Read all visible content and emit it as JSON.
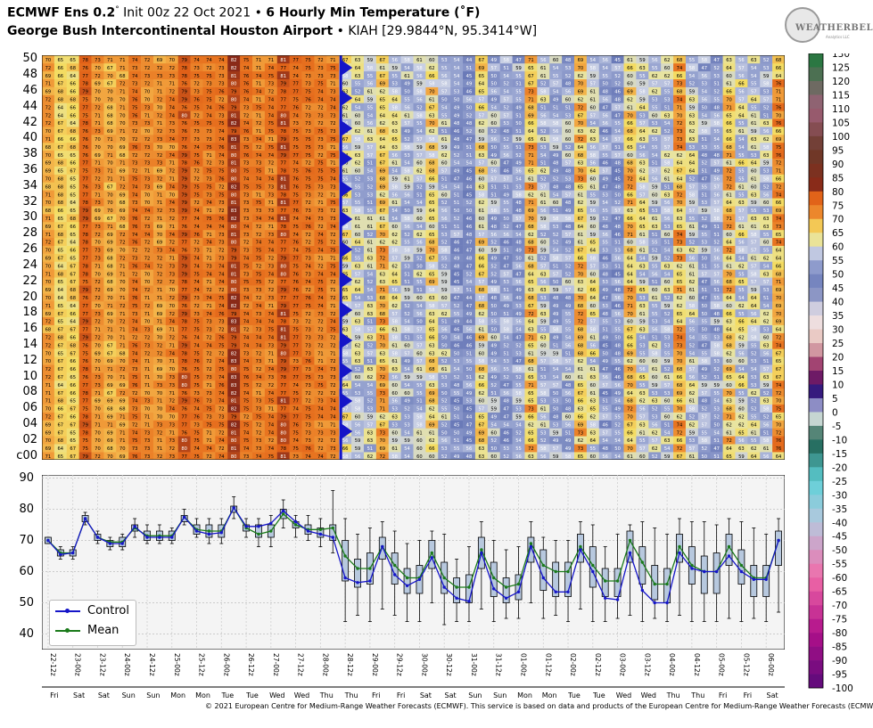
{
  "header": {
    "line1_bold": "ECMWF Ens 0.2",
    "line1_deg": "°",
    "line1_init": " Init 00z 22 Oct 2021 • ",
    "line1_product": "6 Hourly Min Temperature (˚F)",
    "line2_bold": "George Bush Intercontinental Houston Airport",
    "line2_rest": " • KIAH [29.9844°N, 95.3414°W]"
  },
  "logo": {
    "text": "WEATHERBELL",
    "sub": "Analytics LLC"
  },
  "footer": "© 2021 European Centre for Medium-Range Weather Forecasts (ECMWF). This service is based on data and products of the European Centre for Medium-Range Weather Forecasts (ECMWF).",
  "legend": {
    "control": "Control",
    "mean": "Mean"
  },
  "colors": {
    "control": "#1515c8",
    "mean": "#1a7a1a",
    "box_fill": "#b7c8de"
  },
  "chart_data": [
    {
      "type": "heatmap",
      "description_rows": "Ensemble members",
      "y_tick_labels": [
        "c00",
        "02",
        "04",
        "06",
        "08",
        "10",
        "12",
        "14",
        "16",
        "18",
        "20",
        "22",
        "24",
        "26",
        "28",
        "30",
        "32",
        "34",
        "36",
        "38",
        "40",
        "42",
        "44",
        "46",
        "48",
        "50"
      ],
      "member_count": 51,
      "time_step_count": 60,
      "value_range": [
        -100,
        130
      ],
      "cell_values_note": "cell values are per-member 6-hourly minimum temperatures; rows correspond to members c00..50",
      "column_means": [
        70,
        66,
        66,
        77,
        71,
        69,
        70,
        74,
        72,
        71,
        72,
        78,
        74,
        73,
        74,
        81,
        74,
        73,
        73,
        79,
        75,
        74,
        73,
        73,
        61,
        58,
        57,
        67,
        59,
        55,
        56,
        64,
        56,
        51,
        50,
        63,
        54,
        52,
        53,
        67,
        57,
        54,
        54,
        67,
        60,
        51,
        51,
        66,
        59,
        57,
        57,
        68,
        58,
        53,
        53,
        66,
        60,
        58,
        57,
        70
      ]
    },
    {
      "type": "box",
      "x_labels": [
        "22-12z",
        "23-00z",
        "23-12z",
        "24-00z",
        "24-12z",
        "25-00z",
        "25-12z",
        "26-00z",
        "26-12z",
        "27-00z",
        "27-12z",
        "28-00z",
        "28-12z",
        "29-00z",
        "29-12z",
        "30-00z",
        "30-12z",
        "31-00z",
        "31-12z",
        "01-00z",
        "01-12z",
        "02-00z",
        "02-12z",
        "03-00z",
        "03-12z",
        "04-00z",
        "04-12z",
        "05-00z",
        "05-12z",
        "06-00z"
      ],
      "day_labels": [
        "Fri",
        "Sat",
        "Sat",
        "Sun",
        "Sun",
        "Mon",
        "Mon",
        "Tue",
        "Tue",
        "Wed",
        "Wed",
        "Thu",
        "Thu",
        "Fri",
        "Fri",
        "Sat",
        "Sat",
        "Sun",
        "Sun",
        "Mon",
        "Mon",
        "Tue",
        "Tue",
        "Wed",
        "Wed",
        "Thu",
        "Thu",
        "Fri",
        "Fri",
        "Sat"
      ],
      "ylim": [
        35,
        91
      ],
      "yticks": [
        40,
        50,
        60,
        70,
        80,
        90
      ],
      "control": [
        70,
        65.5,
        66,
        77,
        71,
        69,
        69,
        74.5,
        71,
        71,
        71,
        77.5,
        73,
        72,
        72.5,
        80.5,
        74.5,
        74.5,
        75.5,
        79.5,
        76,
        73,
        72,
        71,
        58,
        56.5,
        57,
        68,
        59,
        55.5,
        57.5,
        64.5,
        55,
        51.5,
        50.5,
        66,
        54.5,
        51.5,
        53.5,
        68,
        58,
        53.5,
        53.5,
        67,
        60,
        51.5,
        51,
        66,
        54,
        50,
        50,
        66,
        61,
        60,
        60,
        65,
        60,
        57.5,
        57.5,
        70
      ],
      "mean": [
        70,
        66,
        66,
        77,
        71,
        69.5,
        69.5,
        74,
        71.5,
        71.5,
        71.5,
        77.5,
        73.5,
        73,
        73,
        80.5,
        74,
        72,
        73,
        78.5,
        75,
        73.5,
        73.5,
        74,
        65,
        61,
        61,
        68,
        62,
        58,
        58,
        66,
        58,
        55,
        55,
        67,
        58,
        55,
        56,
        69,
        62,
        60,
        60,
        68,
        62,
        57,
        57,
        70,
        63,
        56,
        56,
        68,
        62,
        60,
        60,
        68,
        62,
        58,
        58,
        70
      ],
      "box_q1": [
        69,
        65,
        65,
        76,
        70,
        68,
        68,
        73,
        70,
        70,
        70,
        76,
        72,
        71,
        71,
        79,
        73,
        71,
        71,
        77,
        74,
        72,
        71,
        70,
        57,
        55,
        56,
        64,
        56,
        53,
        53,
        61,
        53,
        50,
        50,
        61,
        52,
        50,
        51,
        63,
        54,
        52,
        52,
        63,
        55,
        52,
        52,
        63,
        56,
        51,
        50,
        63,
        56,
        53,
        53,
        62,
        56,
        52,
        52,
        62
      ],
      "box_q3": [
        71,
        67,
        67,
        78,
        72,
        70,
        71,
        75,
        73,
        73,
        73,
        78,
        75,
        75,
        75,
        81,
        75,
        75,
        75,
        80,
        76,
        75,
        74,
        75,
        70,
        64,
        66,
        71,
        66,
        61,
        62,
        70,
        63,
        58,
        59,
        71,
        63,
        58,
        59,
        71,
        67,
        63,
        63,
        72,
        68,
        61,
        61,
        73,
        68,
        62,
        61,
        72,
        68,
        65,
        66,
        72,
        67,
        62,
        62,
        73
      ],
      "whisk_lo": [
        69,
        64,
        64,
        75,
        69,
        67,
        67,
        71,
        69,
        69,
        69,
        75,
        71,
        69,
        69,
        77,
        71,
        68,
        68,
        74,
        71,
        70,
        68,
        66,
        44,
        46,
        44,
        48,
        46,
        44,
        44,
        50,
        43,
        44,
        44,
        48,
        44,
        45,
        45,
        50,
        45,
        46,
        44,
        48,
        44,
        44,
        45,
        46,
        44,
        45,
        44,
        46,
        44,
        44,
        44,
        45,
        44,
        45,
        44,
        47
      ],
      "whisk_hi": [
        71,
        68,
        68,
        79,
        73,
        71,
        72,
        77,
        75,
        75,
        74,
        80,
        77,
        77,
        77,
        84,
        77,
        77,
        78,
        83,
        78,
        78,
        77,
        86,
        77,
        72,
        74,
        76,
        73,
        69,
        70,
        73,
        72,
        64,
        68,
        76,
        70,
        67,
        68,
        76,
        71,
        70,
        70,
        76,
        75,
        68,
        72,
        75,
        76,
        74,
        72,
        77,
        76,
        76,
        75,
        77,
        76,
        74,
        72,
        77
      ]
    }
  ]
}
